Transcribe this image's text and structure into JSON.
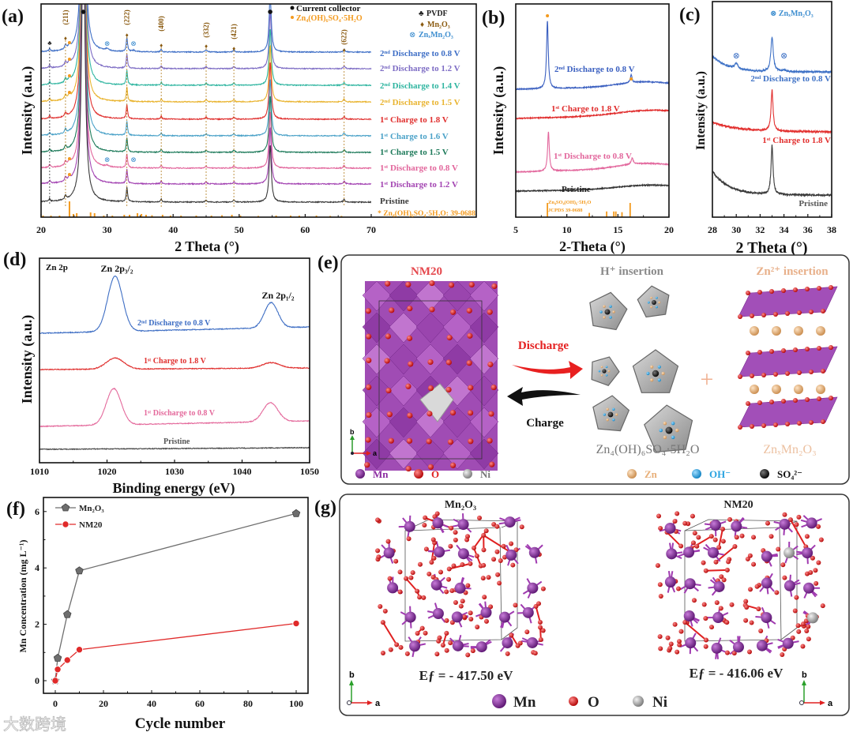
{
  "panel_labels": {
    "a": "(a)",
    "b": "(b)",
    "c": "(c)",
    "d": "(d)",
    "e": "(e)",
    "f": "(f)",
    "g": "(g)"
  },
  "chart_data": [
    {
      "id": "a",
      "type": "line",
      "xlabel": "2 Theta (°)",
      "ylabel": "Intensity (a.u.)",
      "xlim": [
        20,
        70
      ],
      "xticks": [
        20,
        30,
        40,
        50,
        60,
        70
      ],
      "legend": {
        "current_collector": "Current collector",
        "zn_phase": "Zn₄(OH)₆SO₄·5H₂O",
        "pvdf": "PVDF",
        "mn2o3": "Mn₂O₃",
        "znxmn2o3": "ZnₓMn₂O₃"
      },
      "hkl": [
        {
          "label": "(211)",
          "x": 23.7
        },
        {
          "label": "(222)",
          "x": 33.0
        },
        {
          "label": "(400)",
          "x": 38.2
        },
        {
          "label": "(332)",
          "x": 45.0
        },
        {
          "label": "(421)",
          "x": 49.2
        },
        {
          "label": "(622)",
          "x": 65.9
        }
      ],
      "common_peaks": [
        [
          21.3,
          4,
          0.12
        ],
        [
          23.7,
          6,
          0.15
        ],
        [
          26.4,
          400,
          0.3
        ],
        [
          33.0,
          20,
          0.12
        ],
        [
          38.2,
          4,
          0.12
        ],
        [
          45.0,
          3,
          0.15
        ],
        [
          49.2,
          3,
          0.15
        ],
        [
          54.7,
          80,
          0.2
        ],
        [
          65.9,
          4,
          0.15
        ]
      ],
      "series": [
        {
          "name": "2ⁿᵈ Discharge to 0.8 V",
          "color": "#3f6fc6",
          "extra_peaks": [
            [
              24.3,
              5,
              0.2
            ],
            [
              30.0,
              3,
              0.3
            ],
            [
              34.0,
              2,
              0.3
            ]
          ],
          "zn_marker": true
        },
        {
          "name": "2ⁿᵈ Discharge to 1.2 V",
          "color": "#7d6cc4",
          "extra_peaks": [
            [
              24.3,
              5,
              0.2
            ]
          ],
          "zn_marker": true
        },
        {
          "name": "2ⁿᵈ Discharge to 1.4 V",
          "color": "#2fb5a0",
          "extra_peaks": [
            [
              24.3,
              4,
              0.2
            ]
          ],
          "zn_marker": true
        },
        {
          "name": "2ⁿᵈ Discharge to 1.5 V",
          "color": "#e9b430",
          "extra_peaks": [
            [
              24.3,
              4,
              0.2
            ]
          ],
          "zn_marker": true
        },
        {
          "name": "1ˢᵗ Charge to 1.8 V",
          "color": "#e0302f",
          "extra_peaks": [],
          "zn_marker": false
        },
        {
          "name": "1ˢᵗ Charge to 1.6 V",
          "color": "#4ba2c8",
          "extra_peaks": [],
          "zn_marker": false
        },
        {
          "name": "1ˢᵗ Charge to 1.5 V",
          "color": "#1f7b5b",
          "extra_peaks": [],
          "zn_marker": false
        },
        {
          "name": "1ˢᵗ Discharge to 0.8 V",
          "color": "#e2669c",
          "extra_peaks": [
            [
              24.3,
              5,
              0.2
            ],
            [
              30.0,
              2,
              0.3
            ]
          ],
          "zn_marker": true
        },
        {
          "name": "1ˢᵗ Discharge to 1.2 V",
          "color": "#a344b2",
          "extra_peaks": [
            [
              24.3,
              4,
              0.2
            ]
          ],
          "zn_marker": true
        },
        {
          "name": "Pristine",
          "color": "#3a3a3a",
          "extra_peaks": [],
          "zn_marker": false
        }
      ],
      "reference": {
        "label": "* Zn₄(OH)₆SO₄·5H₂O: 39-0688",
        "color": "#f39a1e",
        "sticks": [
          [
            20.3,
            0.1
          ],
          [
            21.5,
            0.1
          ],
          [
            22.8,
            0.1
          ],
          [
            24.3,
            1.0
          ],
          [
            24.9,
            0.2
          ],
          [
            25.4,
            0.25
          ],
          [
            27.5,
            0.3
          ],
          [
            28.1,
            0.25
          ],
          [
            29.5,
            0.1
          ],
          [
            30.8,
            0.1
          ],
          [
            32.6,
            0.15
          ],
          [
            33.4,
            0.15
          ],
          [
            34.6,
            0.25
          ],
          [
            35.2,
            0.2
          ],
          [
            35.9,
            0.15
          ],
          [
            36.8,
            0.12
          ],
          [
            38.4,
            0.15
          ],
          [
            39.6,
            0.1
          ],
          [
            41.2,
            0.1
          ],
          [
            43.5,
            0.1
          ],
          [
            45.8,
            0.1
          ],
          [
            47.4,
            0.12
          ],
          [
            48.9,
            0.15
          ],
          [
            50.2,
            0.1
          ],
          [
            52.9,
            0.08
          ],
          [
            55.6,
            0.1
          ],
          [
            57.8,
            0.1
          ],
          [
            59.1,
            0.1
          ],
          [
            61.7,
            0.1
          ],
          [
            63.8,
            0.08
          ],
          [
            65.5,
            0.08
          ]
        ]
      }
    },
    {
      "id": "b",
      "type": "line",
      "xlabel": "2-Theta (°)",
      "ylabel": "Intensity (a.u.)",
      "xlim": [
        5,
        20
      ],
      "xticks": [
        5,
        10,
        15,
        20
      ],
      "series": [
        {
          "name": "2ⁿᵈ Discharge to 0.8 V",
          "color": "#3a5fc0",
          "peaks": [
            [
              8.1,
              86,
              0.1
            ],
            [
              16.3,
              10,
              0.1
            ],
            [
              17.5,
              6,
              2.5,
              "g"
            ]
          ],
          "markers": [
            8.1,
            16.3
          ]
        },
        {
          "name": "1ˢᵗ Charge to 1.8 V",
          "color": "#e02b2b",
          "peaks": [
            [
              18,
              6,
              3,
              "g"
            ]
          ],
          "markers": []
        },
        {
          "name": "1ˢᵗ Discharge to 0.8 V",
          "color": "#e2669c",
          "peaks": [
            [
              8.2,
              50,
              0.1
            ],
            [
              16.4,
              8,
              0.12
            ],
            [
              17.5,
              6,
              2.5,
              "g"
            ]
          ],
          "markers": []
        },
        {
          "name": "Pristine",
          "color": "#333333",
          "peaks": [
            [
              18,
              5,
              3,
              "g"
            ]
          ],
          "markers": []
        }
      ],
      "reference": {
        "label_line1": "Zn₄SO₄(OH)₆·5H₂O",
        "label_line2": "JCPDS 39-0688",
        "color": "#f39a1e",
        "sticks": [
          [
            8.1,
            1.0
          ],
          [
            12.2,
            0.3
          ],
          [
            13.9,
            0.4
          ],
          [
            14.6,
            0.4
          ],
          [
            14.8,
            0.4
          ],
          [
            15.4,
            0.35
          ],
          [
            16.2,
            1.0
          ]
        ]
      }
    },
    {
      "id": "c",
      "type": "line",
      "xlabel": "2 Theta (°)",
      "ylabel": "Intensity (a.u.)",
      "xlim": [
        28,
        38
      ],
      "xticks": [
        28,
        30,
        32,
        34,
        36,
        38
      ],
      "legend": "⊗ ZnₓMn₂O₃",
      "series": [
        {
          "name": "2ⁿᵈ Discharge to 0.8 V",
          "color": "#3f72c6",
          "peaks": [
            [
              30.0,
              7,
              0.15
            ],
            [
              33.0,
              44,
              0.12
            ],
            [
              34.0,
              2,
              0.2
            ],
            [
              28,
              20,
              1.3,
              "d"
            ]
          ],
          "markers": [
            30.0,
            34.0
          ]
        },
        {
          "name": "1ˢᵗ Charge to 1.8 V",
          "color": "#e2302f",
          "peaks": [
            [
              33.0,
              52,
              0.1
            ],
            [
              28,
              12,
              2.2,
              "d"
            ]
          ],
          "markers": []
        },
        {
          "name": "Pristine",
          "color": "#3a3a3a",
          "peaks": [
            [
              33.0,
              62,
              0.1
            ],
            [
              28,
              30,
              1.4,
              "d"
            ]
          ],
          "markers": []
        }
      ]
    },
    {
      "id": "d",
      "type": "line",
      "xlabel": "Binding energy (eV)",
      "ylabel": "Intensity (a.u.)",
      "xlim": [
        1010,
        1050
      ],
      "xticks": [
        1010,
        1020,
        1030,
        1040,
        1050
      ],
      "annotations": {
        "region": "Zn 2p",
        "p32": "Zn 2p₃/₂",
        "p12": "Zn 2p₁/₂"
      },
      "series": [
        {
          "name": "2ⁿᵈ Discharge to 0.8 V",
          "color": "#3e6ec4",
          "peaks": [
            [
              1021.2,
              70,
              1.1,
              "g"
            ],
            [
              1044.3,
              32,
              1.0,
              "g"
            ]
          ]
        },
        {
          "name": "1ˢᵗ Charge to 1.8 V",
          "color": "#e0302f",
          "peaks": [
            [
              1021.2,
              14,
              1.3,
              "g"
            ],
            [
              1044.3,
              7,
              1.3,
              "g"
            ]
          ]
        },
        {
          "name": "1ˢᵗ Discharge to 0.8 V",
          "color": "#e46a9c",
          "peaks": [
            [
              1021.0,
              46,
              1.1,
              "g"
            ],
            [
              1044.2,
              24,
              1.1,
              "g"
            ]
          ]
        },
        {
          "name": "Pristine",
          "color": "#444444",
          "peaks": []
        }
      ]
    },
    {
      "id": "f",
      "type": "line",
      "xlabel": "Cycle number",
      "ylabel": "Mn Concentration (mg L⁻¹)",
      "xlim": [
        -5,
        105
      ],
      "ylim": [
        -0.4,
        6.5
      ],
      "xticks": [
        0,
        20,
        40,
        60,
        80,
        100
      ],
      "yticks": [
        0,
        2,
        4,
        6
      ],
      "legend_position": "top-left",
      "series": [
        {
          "name": "Mn₂O₃",
          "color": "#6e6e6e",
          "x": [
            0,
            1,
            5,
            10,
            100
          ],
          "y": [
            0,
            0.8,
            2.35,
            3.9,
            5.93
          ],
          "marker": "pentagon"
        },
        {
          "name": "NM20",
          "color": "#e02a2a",
          "x": [
            0,
            1,
            5,
            10,
            100
          ],
          "y": [
            0,
            0.4,
            0.73,
            1.1,
            2.03
          ],
          "marker": "circle"
        }
      ]
    }
  ],
  "panel_e": {
    "nm20_title": "NM20",
    "discharge": "Discharge",
    "charge": "Charge",
    "h_insertion": "H⁺ insertion",
    "zn_insertion": "Zn²⁺ insertion",
    "zn_hydroxide": "Zn₄(OH)₆SO₄·5H₂O",
    "znxmn2o3": "ZnₓMn₂O₃",
    "plus": "+",
    "axis_b": "b",
    "axis_a": "a",
    "legend": [
      {
        "label": "Mn",
        "color": "#8a2aa0"
      },
      {
        "label": "O",
        "color": "#e02020"
      },
      {
        "label": "Ni",
        "color": "#9a9a9a"
      },
      {
        "label": "Zn",
        "color": "#e8b07a"
      },
      {
        "label": "OH⁻",
        "color": "#2aa3e0"
      },
      {
        "label": "SO₄²⁻",
        "color": "#111111"
      }
    ]
  },
  "panel_g": {
    "left_title": "Mn₂O₃",
    "right_title": "NM20",
    "left_energy": "Eƒ = - 417.50 eV",
    "right_energy": "Eƒ = - 416.06 eV",
    "axis_b": "b",
    "axis_a": "a",
    "legend": [
      {
        "label": "Mn",
        "color": "#8a2aa0"
      },
      {
        "label": "O",
        "color": "#e02020"
      },
      {
        "label": "Ni",
        "color": "#a8a8a8"
      }
    ]
  },
  "watermark": "大数跨境"
}
